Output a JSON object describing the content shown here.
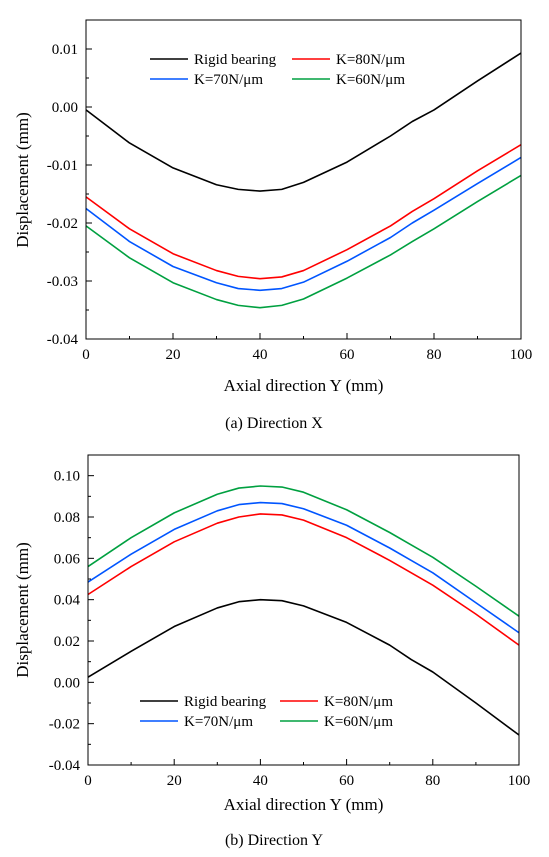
{
  "chart_data": [
    {
      "type": "line",
      "caption": "(a) Direction X",
      "xlabel": "Axial direction Y (mm)",
      "ylabel": "Displacement (mm)",
      "xlim": [
        0,
        100
      ],
      "ylim": [
        -0.04,
        0.015
      ],
      "xticks": [
        0,
        20,
        40,
        60,
        80,
        100
      ],
      "yticks": [
        -0.04,
        -0.03,
        -0.02,
        -0.01,
        0.0,
        0.01
      ],
      "ytick_labels": [
        "-0.04",
        "-0.03",
        "-0.02",
        "-0.01",
        "0.00",
        "0.01"
      ],
      "xtick_labels": [
        "0",
        "20",
        "40",
        "60",
        "80",
        "100"
      ],
      "legend_placement": "top-center",
      "x": [
        0,
        10,
        20,
        30,
        35,
        40,
        45,
        50,
        60,
        70,
        75,
        80,
        90,
        100
      ],
      "series": [
        {
          "name": "Rigid bearing",
          "color": "#000000",
          "values": [
            -0.0005,
            -0.0062,
            -0.0105,
            -0.0134,
            -0.0142,
            -0.0145,
            -0.0142,
            -0.013,
            -0.0095,
            -0.005,
            -0.0025,
            -0.0005,
            0.0045,
            0.0093
          ]
        },
        {
          "name": "K=80N/μm",
          "color": "#ff0000",
          "values": [
            -0.0155,
            -0.021,
            -0.0253,
            -0.0282,
            -0.0292,
            -0.0296,
            -0.0293,
            -0.0282,
            -0.0246,
            -0.0205,
            -0.018,
            -0.0158,
            -0.011,
            -0.0065
          ]
        },
        {
          "name": "K=70N/μm",
          "color": "#0055ff",
          "values": [
            -0.0175,
            -0.0232,
            -0.0275,
            -0.0303,
            -0.0313,
            -0.0316,
            -0.0313,
            -0.0302,
            -0.0266,
            -0.0225,
            -0.02,
            -0.0178,
            -0.0132,
            -0.0087
          ]
        },
        {
          "name": "K=60N/μm",
          "color": "#00a040",
          "values": [
            -0.0205,
            -0.026,
            -0.0303,
            -0.0332,
            -0.0342,
            -0.0346,
            -0.0342,
            -0.0331,
            -0.0295,
            -0.0255,
            -0.0232,
            -0.021,
            -0.0163,
            -0.0118
          ]
        }
      ]
    },
    {
      "type": "line",
      "caption": "(b) Direction Y",
      "xlabel": "Axial direction Y (mm)",
      "ylabel": "Displacement (mm)",
      "xlim": [
        0,
        100
      ],
      "ylim": [
        -0.04,
        0.11
      ],
      "xticks": [
        0,
        20,
        40,
        60,
        80,
        100
      ],
      "yticks": [
        -0.04,
        -0.02,
        0.0,
        0.02,
        0.04,
        0.06,
        0.08,
        0.1
      ],
      "ytick_labels": [
        "-0.04",
        "-0.02",
        "0.00",
        "0.02",
        "0.04",
        "0.06",
        "0.08",
        "0.10"
      ],
      "xtick_labels": [
        "0",
        "20",
        "40",
        "60",
        "80",
        "100"
      ],
      "legend_placement": "bottom-center",
      "x": [
        0,
        10,
        20,
        30,
        35,
        40,
        45,
        50,
        60,
        70,
        75,
        80,
        90,
        100
      ],
      "series": [
        {
          "name": "Rigid bearing",
          "color": "#000000",
          "values": [
            0.0025,
            0.015,
            0.027,
            0.036,
            0.039,
            0.04,
            0.0395,
            0.037,
            0.029,
            0.018,
            0.011,
            0.005,
            -0.01,
            -0.0255
          ]
        },
        {
          "name": "K=80N/μm",
          "color": "#ff0000",
          "values": [
            0.0425,
            0.056,
            0.068,
            0.077,
            0.08,
            0.0815,
            0.081,
            0.0785,
            0.07,
            0.059,
            0.053,
            0.047,
            0.033,
            0.018
          ]
        },
        {
          "name": "K=70N/μm",
          "color": "#0055ff",
          "values": [
            0.0485,
            0.062,
            0.074,
            0.083,
            0.086,
            0.087,
            0.0865,
            0.084,
            0.076,
            0.065,
            0.059,
            0.053,
            0.0385,
            0.024
          ]
        },
        {
          "name": "K=60N/μm",
          "color": "#00a040",
          "values": [
            0.056,
            0.07,
            0.082,
            0.091,
            0.094,
            0.095,
            0.0945,
            0.092,
            0.0835,
            0.0725,
            0.0665,
            0.0605,
            0.0465,
            0.032
          ]
        }
      ]
    }
  ]
}
